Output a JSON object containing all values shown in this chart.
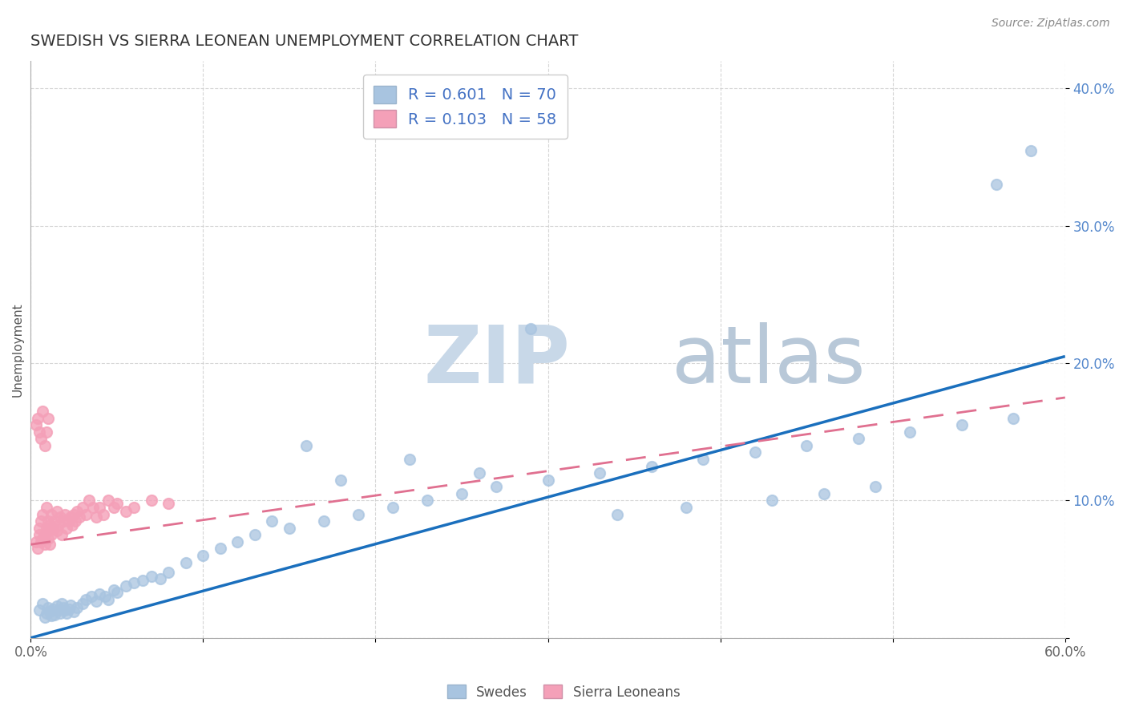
{
  "title": "SWEDISH VS SIERRA LEONEAN UNEMPLOYMENT CORRELATION CHART",
  "source_text": "Source: ZipAtlas.com",
  "ylabel": "Unemployment",
  "xlim": [
    0.0,
    0.6
  ],
  "ylim": [
    0.0,
    0.42
  ],
  "xticks": [
    0.0,
    0.1,
    0.2,
    0.3,
    0.4,
    0.5,
    0.6
  ],
  "xticklabels": [
    "0.0%",
    "",
    "",
    "",
    "",
    "",
    "60.0%"
  ],
  "yticks": [
    0.0,
    0.1,
    0.2,
    0.3,
    0.4
  ],
  "yticklabels": [
    "",
    "10.0%",
    "20.0%",
    "30.0%",
    "40.0%"
  ],
  "blue_R": 0.601,
  "blue_N": 70,
  "pink_R": 0.103,
  "pink_N": 58,
  "blue_color": "#a8c4e0",
  "pink_color": "#f4a0b8",
  "blue_line_color": "#1a6fbd",
  "pink_line_color": "#e07090",
  "watermark_zip_color": "#c8d8e8",
  "watermark_atlas_color": "#b8c8d8",
  "legend_color": "#4472c4",
  "blue_trend_x": [
    0.0,
    0.6
  ],
  "blue_trend_y": [
    0.0,
    0.205
  ],
  "pink_trend_x": [
    0.0,
    0.6
  ],
  "pink_trend_y": [
    0.068,
    0.175
  ],
  "blue_x": [
    0.005,
    0.007,
    0.008,
    0.009,
    0.01,
    0.011,
    0.012,
    0.013,
    0.014,
    0.015,
    0.016,
    0.017,
    0.018,
    0.019,
    0.02,
    0.021,
    0.022,
    0.023,
    0.025,
    0.027,
    0.03,
    0.032,
    0.035,
    0.038,
    0.04,
    0.043,
    0.045,
    0.048,
    0.05,
    0.055,
    0.06,
    0.065,
    0.07,
    0.075,
    0.08,
    0.09,
    0.1,
    0.11,
    0.12,
    0.13,
    0.15,
    0.17,
    0.19,
    0.21,
    0.23,
    0.25,
    0.27,
    0.3,
    0.33,
    0.36,
    0.39,
    0.42,
    0.45,
    0.48,
    0.51,
    0.54,
    0.57,
    0.43,
    0.46,
    0.49,
    0.38,
    0.34,
    0.29,
    0.26,
    0.22,
    0.18,
    0.16,
    0.14,
    0.56,
    0.58
  ],
  "blue_y": [
    0.02,
    0.025,
    0.015,
    0.018,
    0.022,
    0.019,
    0.016,
    0.021,
    0.017,
    0.023,
    0.02,
    0.018,
    0.025,
    0.022,
    0.02,
    0.018,
    0.021,
    0.024,
    0.019,
    0.022,
    0.025,
    0.028,
    0.03,
    0.027,
    0.032,
    0.03,
    0.028,
    0.035,
    0.033,
    0.038,
    0.04,
    0.042,
    0.045,
    0.043,
    0.048,
    0.055,
    0.06,
    0.065,
    0.07,
    0.075,
    0.08,
    0.085,
    0.09,
    0.095,
    0.1,
    0.105,
    0.11,
    0.115,
    0.12,
    0.125,
    0.13,
    0.135,
    0.14,
    0.145,
    0.15,
    0.155,
    0.16,
    0.1,
    0.105,
    0.11,
    0.095,
    0.09,
    0.225,
    0.12,
    0.13,
    0.115,
    0.14,
    0.085,
    0.33,
    0.355
  ],
  "pink_x": [
    0.003,
    0.004,
    0.005,
    0.005,
    0.006,
    0.006,
    0.007,
    0.007,
    0.008,
    0.008,
    0.009,
    0.009,
    0.01,
    0.01,
    0.01,
    0.011,
    0.011,
    0.012,
    0.012,
    0.013,
    0.014,
    0.015,
    0.015,
    0.016,
    0.017,
    0.018,
    0.019,
    0.02,
    0.021,
    0.022,
    0.023,
    0.024,
    0.025,
    0.026,
    0.027,
    0.028,
    0.03,
    0.032,
    0.034,
    0.036,
    0.038,
    0.04,
    0.042,
    0.045,
    0.048,
    0.05,
    0.055,
    0.06,
    0.07,
    0.08,
    0.003,
    0.004,
    0.005,
    0.006,
    0.007,
    0.008,
    0.009,
    0.01
  ],
  "pink_y": [
    0.07,
    0.065,
    0.075,
    0.08,
    0.07,
    0.085,
    0.072,
    0.09,
    0.068,
    0.075,
    0.08,
    0.095,
    0.072,
    0.078,
    0.085,
    0.068,
    0.082,
    0.075,
    0.09,
    0.08,
    0.085,
    0.078,
    0.092,
    0.082,
    0.088,
    0.075,
    0.085,
    0.09,
    0.08,
    0.085,
    0.088,
    0.082,
    0.09,
    0.085,
    0.092,
    0.088,
    0.095,
    0.09,
    0.1,
    0.095,
    0.088,
    0.095,
    0.09,
    0.1,
    0.095,
    0.098,
    0.092,
    0.095,
    0.1,
    0.098,
    0.155,
    0.16,
    0.15,
    0.145,
    0.165,
    0.14,
    0.15,
    0.16
  ]
}
